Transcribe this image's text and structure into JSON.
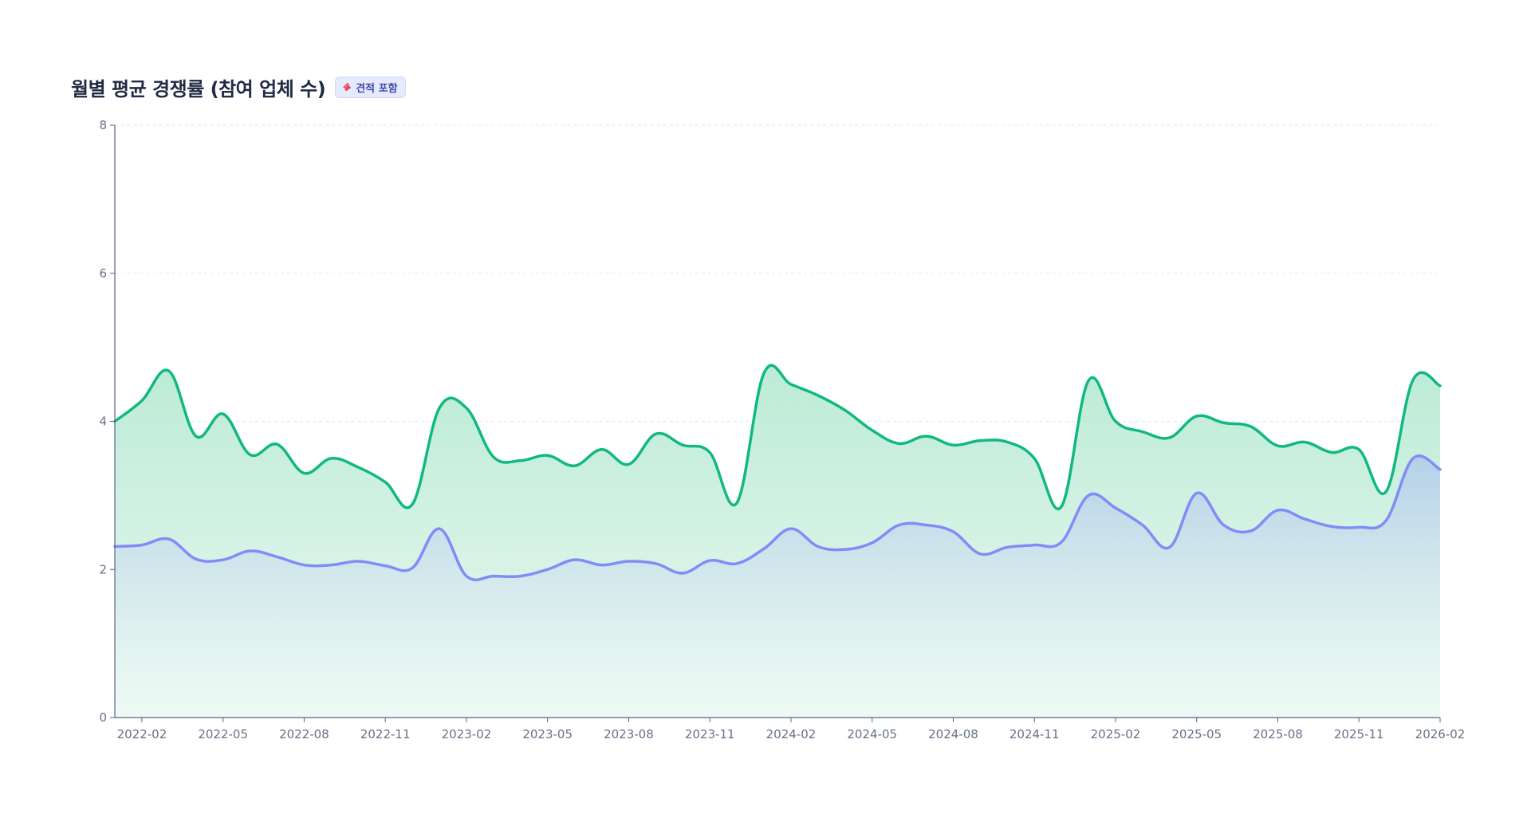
{
  "header": {
    "title": "월별 평균 경쟁률 (참여 업체 수)",
    "badge_label": "견적 포함",
    "badge_icon": "ticket-icon"
  },
  "colors": {
    "upper_line": "#10b981",
    "upper_fill": "#b8ead3",
    "lower_line": "#818cf8",
    "lower_fill": "#b3cde9",
    "axis": "#5b6482",
    "grid": "#e5e7eb",
    "badge_bg": "#e6eaff",
    "badge_text": "#3f49a8"
  },
  "chart_data": {
    "type": "area",
    "stacked": false,
    "title": "월별 평균 경쟁률 (참여 업체 수)",
    "xlabel": "",
    "ylabel": "",
    "ylim": [
      0,
      8
    ],
    "y_ticks": [
      0,
      2,
      4,
      6,
      8
    ],
    "grid": "horizontal dashed",
    "legend": "none",
    "x": [
      "2022-01",
      "2022-02",
      "2022-03",
      "2022-04",
      "2022-05",
      "2022-06",
      "2022-07",
      "2022-08",
      "2022-09",
      "2022-10",
      "2022-11",
      "2022-12",
      "2023-01",
      "2023-02",
      "2023-03",
      "2023-04",
      "2023-05",
      "2023-06",
      "2023-07",
      "2023-08",
      "2023-09",
      "2023-10",
      "2023-11",
      "2023-12",
      "2024-01",
      "2024-02",
      "2024-03",
      "2024-04",
      "2024-05",
      "2024-06",
      "2024-07",
      "2024-08",
      "2024-09",
      "2024-10",
      "2024-11",
      "2024-12",
      "2025-01",
      "2025-02",
      "2025-03",
      "2025-04",
      "2025-05",
      "2025-06",
      "2025-07",
      "2025-08",
      "2025-09",
      "2025-10",
      "2025-11",
      "2025-12",
      "2026-01",
      "2026-02"
    ],
    "x_tick_labels": [
      "2022-02",
      "2022-05",
      "2022-08",
      "2022-11",
      "2023-02",
      "2023-05",
      "2023-08",
      "2023-11",
      "2024-02",
      "2024-05",
      "2024-08",
      "2024-11",
      "2025-02",
      "2025-05",
      "2025-08",
      "2025-11",
      "2026-02"
    ],
    "series": [
      {
        "values": [
          4.0,
          4.28,
          4.68,
          3.8,
          4.1,
          3.55,
          3.69,
          3.3,
          3.5,
          3.38,
          3.18,
          2.88,
          4.18,
          4.18,
          3.52,
          3.47,
          3.54,
          3.4,
          3.62,
          3.42,
          3.83,
          3.68,
          3.58,
          2.9,
          4.65,
          4.5,
          4.35,
          4.15,
          3.88,
          3.7,
          3.8,
          3.68,
          3.74,
          3.72,
          3.5,
          2.85,
          4.55,
          4.0,
          3.86,
          3.78,
          4.07,
          3.98,
          3.93,
          3.67,
          3.72,
          3.58,
          3.62,
          3.05,
          4.56,
          4.48
        ]
      },
      {
        "values": [
          2.31,
          2.33,
          2.41,
          2.14,
          2.13,
          2.25,
          2.17,
          2.06,
          2.06,
          2.11,
          2.05,
          2.02,
          2.55,
          1.91,
          1.91,
          1.91,
          2.0,
          2.13,
          2.06,
          2.11,
          2.08,
          1.95,
          2.12,
          2.08,
          2.28,
          2.55,
          2.31,
          2.27,
          2.36,
          2.6,
          2.6,
          2.51,
          2.21,
          2.3,
          2.33,
          2.37,
          3.0,
          2.83,
          2.6,
          2.3,
          3.03,
          2.6,
          2.52,
          2.8,
          2.68,
          2.58,
          2.57,
          2.66,
          3.5,
          3.35
        ]
      }
    ]
  }
}
